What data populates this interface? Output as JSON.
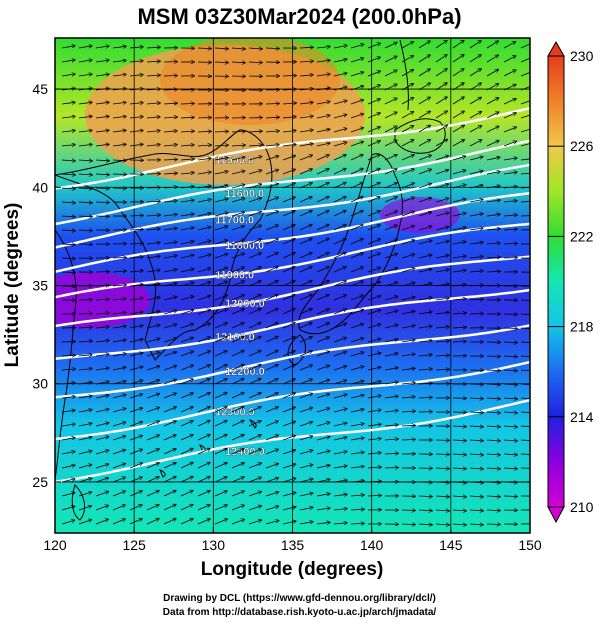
{
  "title": "MSM 03Z30Mar2024 (200.0hPa)",
  "x_axis": {
    "label": "Longitude (degrees)",
    "ticks": [
      120,
      125,
      130,
      135,
      140,
      145,
      150
    ],
    "range": [
      120,
      150
    ]
  },
  "y_axis": {
    "label": "Latitude  (degrees)",
    "ticks": [
      25,
      30,
      35,
      40,
      45
    ],
    "range": [
      22.4,
      47.6
    ]
  },
  "colorbar": {
    "range": [
      210,
      230
    ],
    "tick_labels": [
      "230",
      "226",
      "222",
      "218",
      "214",
      "210"
    ],
    "tick_values": [
      230,
      226,
      222,
      218,
      214,
      210
    ],
    "colors": [
      "#d400d4",
      "#8a00e0",
      "#2020e0",
      "#1e6cf0",
      "#14c4e6",
      "#14e6b4",
      "#32dc32",
      "#a0e628",
      "#f0c84b",
      "#f08228",
      "#e63c1e"
    ]
  },
  "contours": [
    {
      "label": "11500.0"
    },
    {
      "label": "11600.0"
    },
    {
      "label": "11700.0"
    },
    {
      "label": "11800.0"
    },
    {
      "label": "11900.0"
    },
    {
      "label": "12000.0"
    },
    {
      "label": "12100.0"
    },
    {
      "label": "12200.0"
    },
    {
      "label": "12300.0"
    },
    {
      "label": "12400.0"
    }
  ],
  "credits": {
    "line1": "Drawing by DCL (https://www.gfd-dennou.org/library/dcl/)",
    "line2": "Data from http://database.rish.kyoto-u.ac.jp/arch/jmadata/"
  }
}
